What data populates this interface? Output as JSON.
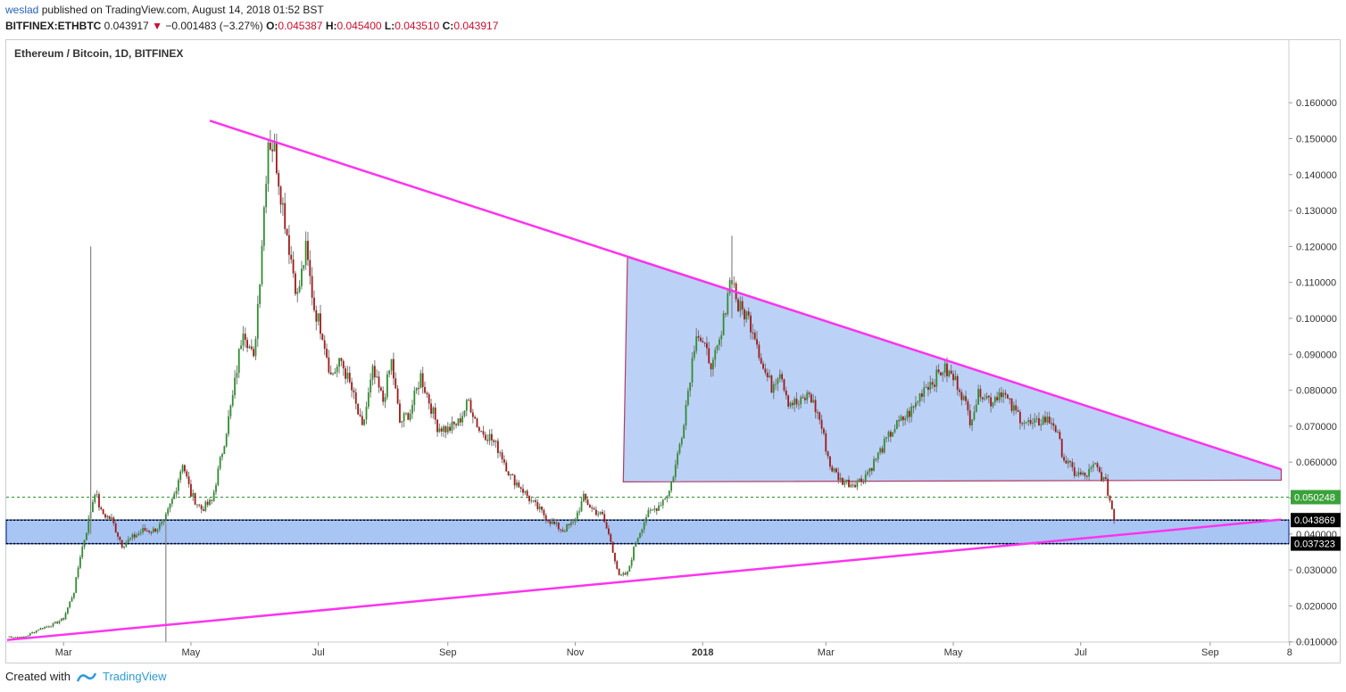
{
  "header": {
    "author": "weslad",
    "published": "published on TradingView.com, August 14, 2018 01:52 BST",
    "symbol": "BITFINEX:ETHBTC",
    "last": "0.043917",
    "change": "−0.001483 (−3.27%)",
    "o_label": "O:",
    "o_value": "0.045387",
    "h_label": "H:",
    "h_value": "0.045400",
    "l_label": "L:",
    "l_value": "0.043510",
    "c_label": "C:",
    "c_value": "0.043917"
  },
  "footer": {
    "created_with": "Created with",
    "brand": "TradingView"
  },
  "colors": {
    "up": "#2f8e2f",
    "down": "#a11818",
    "wedge": "#ff33ee",
    "box": "#7aa3ee",
    "zone": "#3f7fe6"
  },
  "chart_data": {
    "type": "candlestick",
    "title": "Ethereum / Bitcoin, 1D, BITFINEX",
    "y_ticks": [
      "0.160000",
      "0.150000",
      "0.140000",
      "0.130000",
      "0.120000",
      "0.110000",
      "0.100000",
      "0.090000",
      "0.080000",
      "0.070000",
      "0.060000",
      "0.050000",
      "0.040000",
      "0.030000",
      "0.020000",
      "0.010000"
    ],
    "y_tick_values": [
      0.16,
      0.15,
      0.14,
      0.13,
      0.12,
      0.11,
      0.1,
      0.09,
      0.08,
      0.07,
      0.06,
      0.05,
      0.04,
      0.03,
      0.02,
      0.01
    ],
    "x_ticks": [
      "Mar",
      "May",
      "Jul",
      "Sep",
      "Nov",
      "2018",
      "Mar",
      "May",
      "Jul",
      "Sep",
      "8"
    ],
    "x_tick_days": [
      27,
      88,
      149,
      211,
      272,
      333,
      392,
      453,
      514,
      576,
      614
    ],
    "ylim": [
      0.0,
      0.169
    ],
    "price_markers": [
      {
        "label": "0.050248",
        "value": 0.050248,
        "style": "green"
      },
      {
        "label": "0.043869",
        "value": 0.043869,
        "style": "black"
      },
      {
        "label": "0.037323",
        "value": 0.037323,
        "style": "black"
      }
    ],
    "close_path": [
      [
        0,
        0.0115
      ],
      [
        8,
        0.0112
      ],
      [
        15,
        0.0135
      ],
      [
        22,
        0.0148
      ],
      [
        27,
        0.0165
      ],
      [
        32,
        0.024
      ],
      [
        35,
        0.034
      ],
      [
        38,
        0.041
      ],
      [
        42,
        0.052
      ],
      [
        45,
        0.046
      ],
      [
        50,
        0.044
      ],
      [
        55,
        0.037
      ],
      [
        60,
        0.039
      ],
      [
        65,
        0.041
      ],
      [
        70,
        0.041
      ],
      [
        75,
        0.043
      ],
      [
        80,
        0.051
      ],
      [
        84,
        0.06
      ],
      [
        88,
        0.051
      ],
      [
        93,
        0.047
      ],
      [
        98,
        0.049
      ],
      [
        103,
        0.063
      ],
      [
        108,
        0.078
      ],
      [
        113,
        0.098
      ],
      [
        118,
        0.088
      ],
      [
        121,
        0.112
      ],
      [
        125,
        0.15
      ],
      [
        128,
        0.147
      ],
      [
        131,
        0.135
      ],
      [
        135,
        0.12
      ],
      [
        139,
        0.106
      ],
      [
        143,
        0.119
      ],
      [
        147,
        0.103
      ],
      [
        151,
        0.096
      ],
      [
        155,
        0.084
      ],
      [
        160,
        0.088
      ],
      [
        165,
        0.08
      ],
      [
        170,
        0.069
      ],
      [
        175,
        0.085
      ],
      [
        180,
        0.077
      ],
      [
        184,
        0.088
      ],
      [
        188,
        0.071
      ],
      [
        193,
        0.074
      ],
      [
        198,
        0.084
      ],
      [
        202,
        0.077
      ],
      [
        206,
        0.07
      ],
      [
        211,
        0.069
      ],
      [
        216,
        0.071
      ],
      [
        221,
        0.077
      ],
      [
        226,
        0.069
      ],
      [
        231,
        0.067
      ],
      [
        236,
        0.063
      ],
      [
        241,
        0.056
      ],
      [
        246,
        0.053
      ],
      [
        251,
        0.049
      ],
      [
        256,
        0.046
      ],
      [
        261,
        0.043
      ],
      [
        266,
        0.041
      ],
      [
        271,
        0.043
      ],
      [
        276,
        0.05
      ],
      [
        280,
        0.047
      ],
      [
        285,
        0.045
      ],
      [
        289,
        0.038
      ],
      [
        293,
        0.028
      ],
      [
        297,
        0.029
      ],
      [
        301,
        0.038
      ],
      [
        306,
        0.045
      ],
      [
        312,
        0.048
      ],
      [
        317,
        0.052
      ],
      [
        320,
        0.059
      ],
      [
        323,
        0.068
      ],
      [
        326,
        0.08
      ],
      [
        330,
        0.097
      ],
      [
        334,
        0.091
      ],
      [
        338,
        0.087
      ],
      [
        342,
        0.095
      ],
      [
        345,
        0.108
      ],
      [
        347,
        0.112
      ],
      [
        350,
        0.103
      ],
      [
        354,
        0.101
      ],
      [
        358,
        0.096
      ],
      [
        362,
        0.086
      ],
      [
        366,
        0.081
      ],
      [
        370,
        0.086
      ],
      [
        374,
        0.077
      ],
      [
        379,
        0.076
      ],
      [
        384,
        0.079
      ],
      [
        389,
        0.072
      ],
      [
        394,
        0.059
      ],
      [
        399,
        0.055
      ],
      [
        404,
        0.054
      ],
      [
        409,
        0.055
      ],
      [
        414,
        0.059
      ],
      [
        419,
        0.064
      ],
      [
        424,
        0.069
      ],
      [
        429,
        0.072
      ],
      [
        434,
        0.075
      ],
      [
        439,
        0.081
      ],
      [
        444,
        0.083
      ],
      [
        448,
        0.086
      ],
      [
        452,
        0.084
      ],
      [
        456,
        0.081
      ],
      [
        461,
        0.072
      ],
      [
        466,
        0.08
      ],
      [
        471,
        0.077
      ],
      [
        476,
        0.08
      ],
      [
        481,
        0.075
      ],
      [
        486,
        0.072
      ],
      [
        491,
        0.07
      ],
      [
        496,
        0.072
      ],
      [
        501,
        0.071
      ],
      [
        506,
        0.061
      ],
      [
        511,
        0.057
      ],
      [
        516,
        0.056
      ],
      [
        521,
        0.059
      ],
      [
        526,
        0.054
      ],
      [
        529,
        0.047
      ],
      [
        530,
        0.0439
      ]
    ],
    "spikes": [
      {
        "day": 40,
        "low": 0.04,
        "high": 0.12
      },
      {
        "day": 76,
        "low": 0.01,
        "high": 0.043
      },
      {
        "day": 347,
        "low": 0.1,
        "high": 0.123
      }
    ],
    "wedge_upper": [
      [
        97,
        0.155
      ],
      [
        610,
        0.058
      ]
    ],
    "wedge_lower": [
      [
        0,
        0.0105
      ],
      [
        610,
        0.044
      ]
    ],
    "triangle_box": [
      [
        297,
        0.117
      ],
      [
        295,
        0.0545
      ],
      [
        610,
        0.055
      ],
      [
        610,
        0.058
      ]
    ],
    "support_zone": [
      0.0373,
      0.0439
    ]
  }
}
